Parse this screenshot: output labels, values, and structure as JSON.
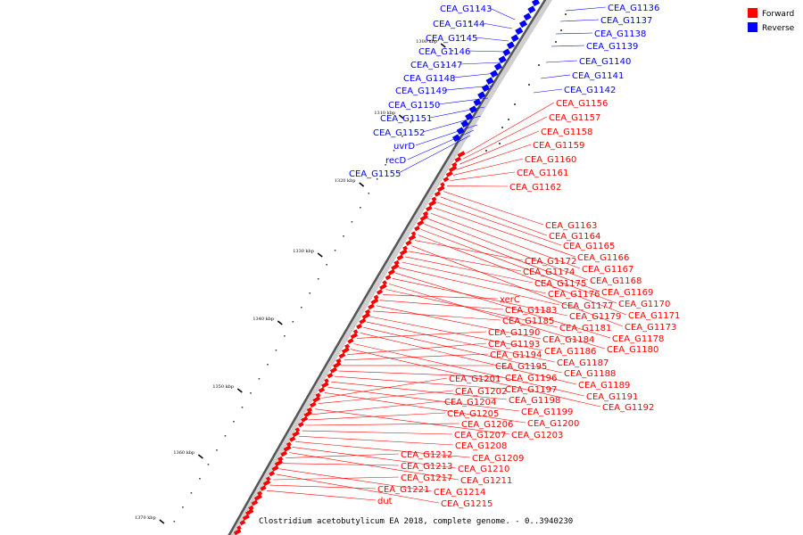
{
  "legend": {
    "forward": {
      "label": "Forward",
      "color": "#ff0000"
    },
    "reverse": {
      "label": "Reverse",
      "color": "#0000ff"
    }
  },
  "caption": "Clostridium acetobutylicum EA 2018, complete genome. - 0..3940230",
  "ticks": [
    "1300 kbp",
    "1310 kbp",
    "1320 kbp",
    "1330 kbp",
    "1340 kbp",
    "1350 kbp",
    "1360 kbp",
    "1370 kbp"
  ],
  "reverse_genes": [
    "CEA_G1136",
    "CEA_G1137",
    "CEA_G1138",
    "CEA_G1139",
    "CEA_G1140",
    "CEA_G1141",
    "CEA_G1142",
    "CEA_G1143",
    "CEA_G1144",
    "CEA_G1145",
    "CEA_G1146",
    "CEA_G1147",
    "CEA_G1148",
    "CEA_G1149",
    "CEA_G1150",
    "CEA_G1151",
    "CEA_G1152",
    "uvrD",
    "recD",
    "CEA_G1155"
  ],
  "forward_genes": [
    "CEA_G1156",
    "CEA_G1157",
    "CEA_G1158",
    "CEA_G1159",
    "CEA_G1160",
    "CEA_G1161",
    "CEA_G1162",
    "CEA_G1163",
    "CEA_G1164",
    "CEA_G1165",
    "CEA_G1166",
    "CEA_G1167",
    "CEA_G1168",
    "CEA_G1169",
    "CEA_G1170",
    "CEA_G1171",
    "CEA_G1172",
    "CEA_G1173",
    "CEA_G1174",
    "CEA_G1175",
    "CEA_G1176",
    "CEA_G1177",
    "CEA_G1178",
    "CEA_G1179",
    "CEA_G1180",
    "CEA_G1181",
    "xerC",
    "CEA_G1183",
    "CEA_G1184",
    "CEA_G1185",
    "CEA_G1186",
    "CEA_G1187",
    "CEA_G1188",
    "CEA_G1189",
    "CEA_G1190",
    "CEA_G1191",
    "CEA_G1192",
    "CEA_G1193",
    "CEA_G1194",
    "CEA_G1195",
    "CEA_G1196",
    "CEA_G1197",
    "CEA_G1198",
    "CEA_G1199",
    "CEA_G1200",
    "CEA_G1201",
    "CEA_G1202",
    "CEA_G1203",
    "CEA_G1204",
    "CEA_G1205",
    "CEA_G1206",
    "CEA_G1207",
    "CEA_G1208",
    "CEA_G1209",
    "CEA_G1210",
    "CEA_G1211",
    "CEA_G1212",
    "CEA_G1213",
    "CEA_G1214",
    "CEA_G1215",
    "CEA_G1217",
    "CEA_G1221",
    "dut"
  ]
}
